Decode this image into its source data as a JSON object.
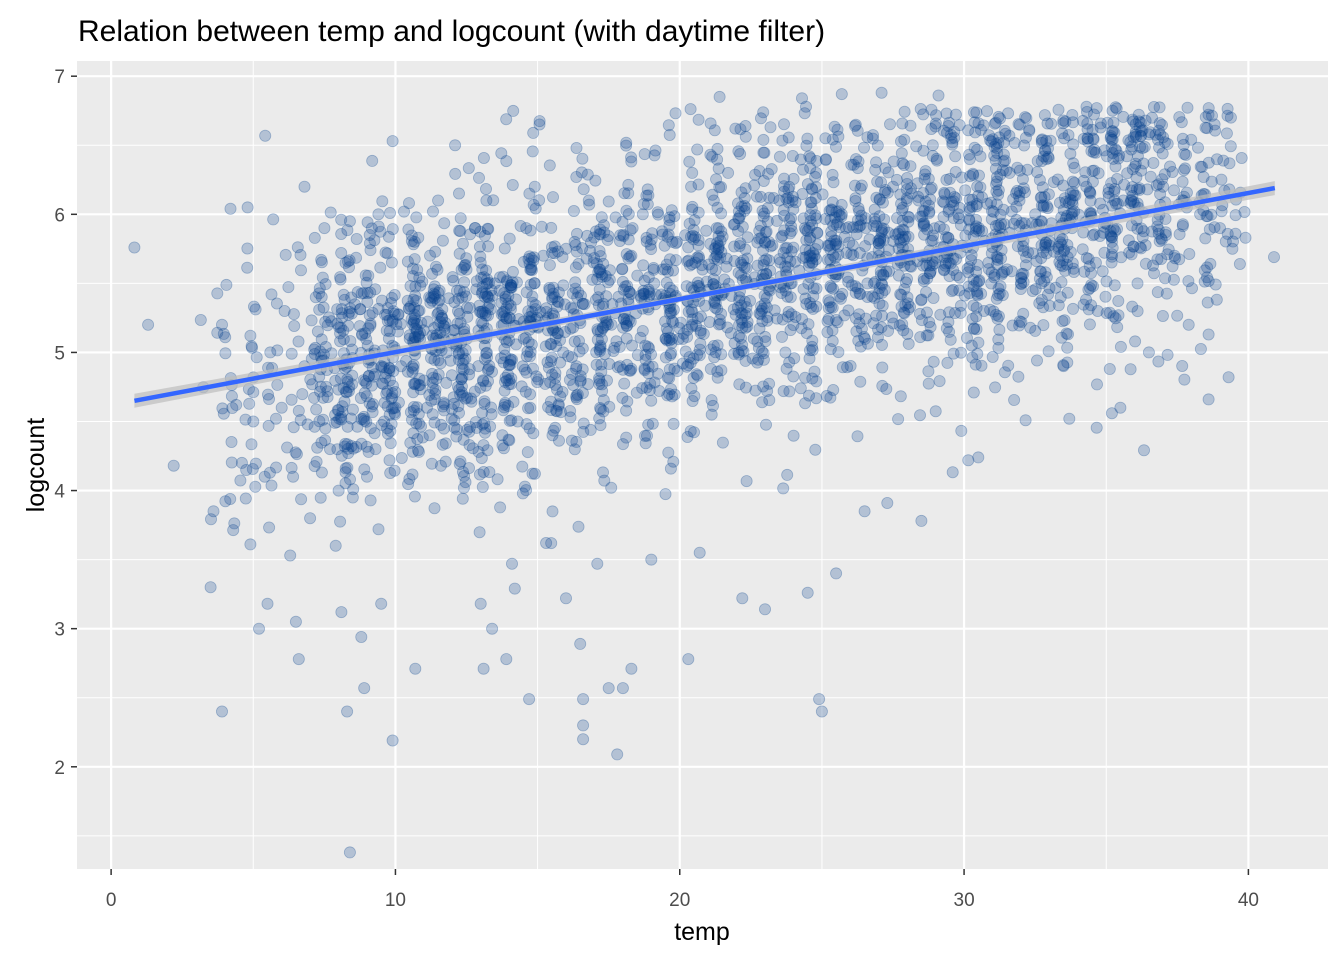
{
  "chart_data": {
    "type": "scatter",
    "title": "Relation between temp and logcount (with daytime filter)",
    "xlabel": "temp",
    "ylabel": "logcount",
    "xlim": [
      -1.2,
      42.8
    ],
    "ylim": [
      1.26,
      7.11
    ],
    "x_ticks": [
      0,
      10,
      20,
      30,
      40
    ],
    "y_ticks": [
      2,
      3,
      4,
      5,
      6,
      7
    ],
    "x_tick_labels": [
      "0",
      "10",
      "20",
      "30",
      "40"
    ],
    "y_tick_labels": [
      "2",
      "3",
      "4",
      "5",
      "6",
      "7"
    ],
    "grid": true,
    "point_color": "#0b4590",
    "point_alpha": 0.25,
    "panel_background": "#ebebeb",
    "grid_color": "#ffffff",
    "fit_line": {
      "method": "linear",
      "color": "#3366ff",
      "band_color": "#bdbdbd",
      "x": [
        0.82,
        40.93
      ],
      "y": [
        4.65,
        6.19
      ]
    },
    "series": [
      {
        "points": [
          [
            0.82,
            5.76
          ],
          [
            1.3,
            5.2
          ],
          [
            2.2,
            4.18
          ],
          [
            3.5,
            3.3
          ],
          [
            3.6,
            3.85
          ],
          [
            3.9,
            2.4
          ],
          [
            3.9,
            5.2
          ],
          [
            4.2,
            6.04
          ],
          [
            4.4,
            4.62
          ],
          [
            4.8,
            6.05
          ],
          [
            4.9,
            3.61
          ],
          [
            5.2,
            3.0
          ],
          [
            5.5,
            3.18
          ],
          [
            6.5,
            3.05
          ],
          [
            6.6,
            2.78
          ],
          [
            5.4,
            4.1
          ],
          [
            5.8,
            4.52
          ],
          [
            6.1,
            5.3
          ],
          [
            6.3,
            3.53
          ],
          [
            6.8,
            6.2
          ],
          [
            7.5,
            5.9
          ],
          [
            8.1,
            3.12
          ],
          [
            8.3,
            2.4
          ],
          [
            8.4,
            1.38
          ],
          [
            8.4,
            5.95
          ],
          [
            8.8,
            2.94
          ],
          [
            8.9,
            2.57
          ],
          [
            9.5,
            3.18
          ],
          [
            9.4,
            6.0
          ],
          [
            9.9,
            2.19
          ],
          [
            9.9,
            6.53
          ],
          [
            10.3,
            6.02
          ],
          [
            10.7,
            2.71
          ],
          [
            11.5,
            6.1
          ],
          [
            12.1,
            6.5
          ],
          [
            13.0,
            3.18
          ],
          [
            13.1,
            2.71
          ],
          [
            13.4,
            3.0
          ],
          [
            13.9,
            2.78
          ],
          [
            14.1,
            3.47
          ],
          [
            14.7,
            2.49
          ],
          [
            14.2,
            3.29
          ],
          [
            15.3,
            3.62
          ],
          [
            16.0,
            3.22
          ],
          [
            16.5,
            2.89
          ],
          [
            16.6,
            2.49
          ],
          [
            16.6,
            2.3
          ],
          [
            16.6,
            2.2
          ],
          [
            17.1,
            3.47
          ],
          [
            17.5,
            2.57
          ],
          [
            17.8,
            2.09
          ],
          [
            18.0,
            2.57
          ],
          [
            18.3,
            2.71
          ],
          [
            19.0,
            3.5
          ],
          [
            20.3,
            2.78
          ],
          [
            20.7,
            3.55
          ],
          [
            22.2,
            3.22
          ],
          [
            23.0,
            3.14
          ],
          [
            24.5,
            3.26
          ],
          [
            24.9,
            2.49
          ],
          [
            25.0,
            2.4
          ],
          [
            25.5,
            3.4
          ],
          [
            26.5,
            3.85
          ],
          [
            27.3,
            3.91
          ],
          [
            28.5,
            3.78
          ],
          [
            30.5,
            4.24
          ],
          [
            33.7,
            4.52
          ],
          [
            35.2,
            4.56
          ],
          [
            35.5,
            4.6
          ],
          [
            38.6,
            4.66
          ],
          [
            38.6,
            5.13
          ],
          [
            39.0,
            5.9
          ],
          [
            39.7,
            5.64
          ],
          [
            39.9,
            5.83
          ],
          [
            40.9,
            5.69
          ],
          [
            27.1,
            6.88
          ],
          [
            29.1,
            6.86
          ],
          [
            25.7,
            6.87
          ],
          [
            21.4,
            6.85
          ],
          [
            24.3,
            6.84
          ],
          [
            8.0,
            4.0
          ],
          [
            8.5,
            3.95
          ],
          [
            9.0,
            4.1
          ],
          [
            9.3,
            4.3
          ],
          [
            9.6,
            4.5
          ],
          [
            10.0,
            4.6
          ],
          [
            10.2,
            4.9
          ],
          [
            10.5,
            5.1
          ],
          [
            10.8,
            5.3
          ],
          [
            11.2,
            4.4
          ],
          [
            11.4,
            4.7
          ],
          [
            11.8,
            5.0
          ],
          [
            12.2,
            5.3
          ],
          [
            12.5,
            5.6
          ],
          [
            12.8,
            5.9
          ],
          [
            13.2,
            6.1
          ],
          [
            13.5,
            5.5
          ],
          [
            13.8,
            5.2
          ],
          [
            14.0,
            4.8
          ],
          [
            14.3,
            4.5
          ],
          [
            14.6,
            5.9
          ],
          [
            14.9,
            6.2
          ],
          [
            15.2,
            5.7
          ],
          [
            15.6,
            5.4
          ],
          [
            15.9,
            5.0
          ],
          [
            16.3,
            5.8
          ],
          [
            16.8,
            6.1
          ],
          [
            17.2,
            5.6
          ],
          [
            17.6,
            5.2
          ],
          [
            17.9,
            4.9
          ],
          [
            18.3,
            5.7
          ],
          [
            18.7,
            6.0
          ],
          [
            19.1,
            5.5
          ],
          [
            19.5,
            5.1
          ],
          [
            19.9,
            5.8
          ],
          [
            20.4,
            6.2
          ],
          [
            20.8,
            5.6
          ],
          [
            21.3,
            5.9
          ],
          [
            21.7,
            6.3
          ],
          [
            22.1,
            5.4
          ],
          [
            22.6,
            5.1
          ],
          [
            23.0,
            5.8
          ],
          [
            23.5,
            6.1
          ],
          [
            23.9,
            5.5
          ],
          [
            24.4,
            5.9
          ],
          [
            24.8,
            6.3
          ],
          [
            25.3,
            5.6
          ],
          [
            25.7,
            6.0
          ],
          [
            26.2,
            6.4
          ],
          [
            26.6,
            5.5
          ],
          [
            27.1,
            5.9
          ],
          [
            27.5,
            6.2
          ],
          [
            28.0,
            5.7
          ],
          [
            28.4,
            6.1
          ],
          [
            28.9,
            6.5
          ],
          [
            29.3,
            5.6
          ],
          [
            29.8,
            6.0
          ],
          [
            30.2,
            6.4
          ],
          [
            30.7,
            5.3
          ],
          [
            31.1,
            5.8
          ],
          [
            31.6,
            6.3
          ],
          [
            32.0,
            5.5
          ],
          [
            32.5,
            6.0
          ],
          [
            32.9,
            6.4
          ],
          [
            33.4,
            5.4
          ],
          [
            33.8,
            5.9
          ],
          [
            34.3,
            6.2
          ],
          [
            34.7,
            5.3
          ],
          [
            35.2,
            5.8
          ],
          [
            35.6,
            6.1
          ],
          [
            36.1,
            5.5
          ],
          [
            36.5,
            5.0
          ],
          [
            37.0,
            6.2
          ],
          [
            37.4,
            5.7
          ],
          [
            37.9,
            5.2
          ],
          [
            38.3,
            6.0
          ],
          [
            6.0,
            4.6
          ],
          [
            6.8,
            4.9
          ],
          [
            7.2,
            5.4
          ],
          [
            7.7,
            4.3
          ],
          [
            5.6,
            5.0
          ],
          [
            5.0,
            4.5
          ],
          [
            4.6,
            4.2
          ],
          [
            6.4,
            4.1
          ],
          [
            7.0,
            3.8
          ],
          [
            7.9,
            3.6
          ]
        ]
      }
    ]
  },
  "render": {
    "noise_points": 2900,
    "seed": 20240517
  }
}
